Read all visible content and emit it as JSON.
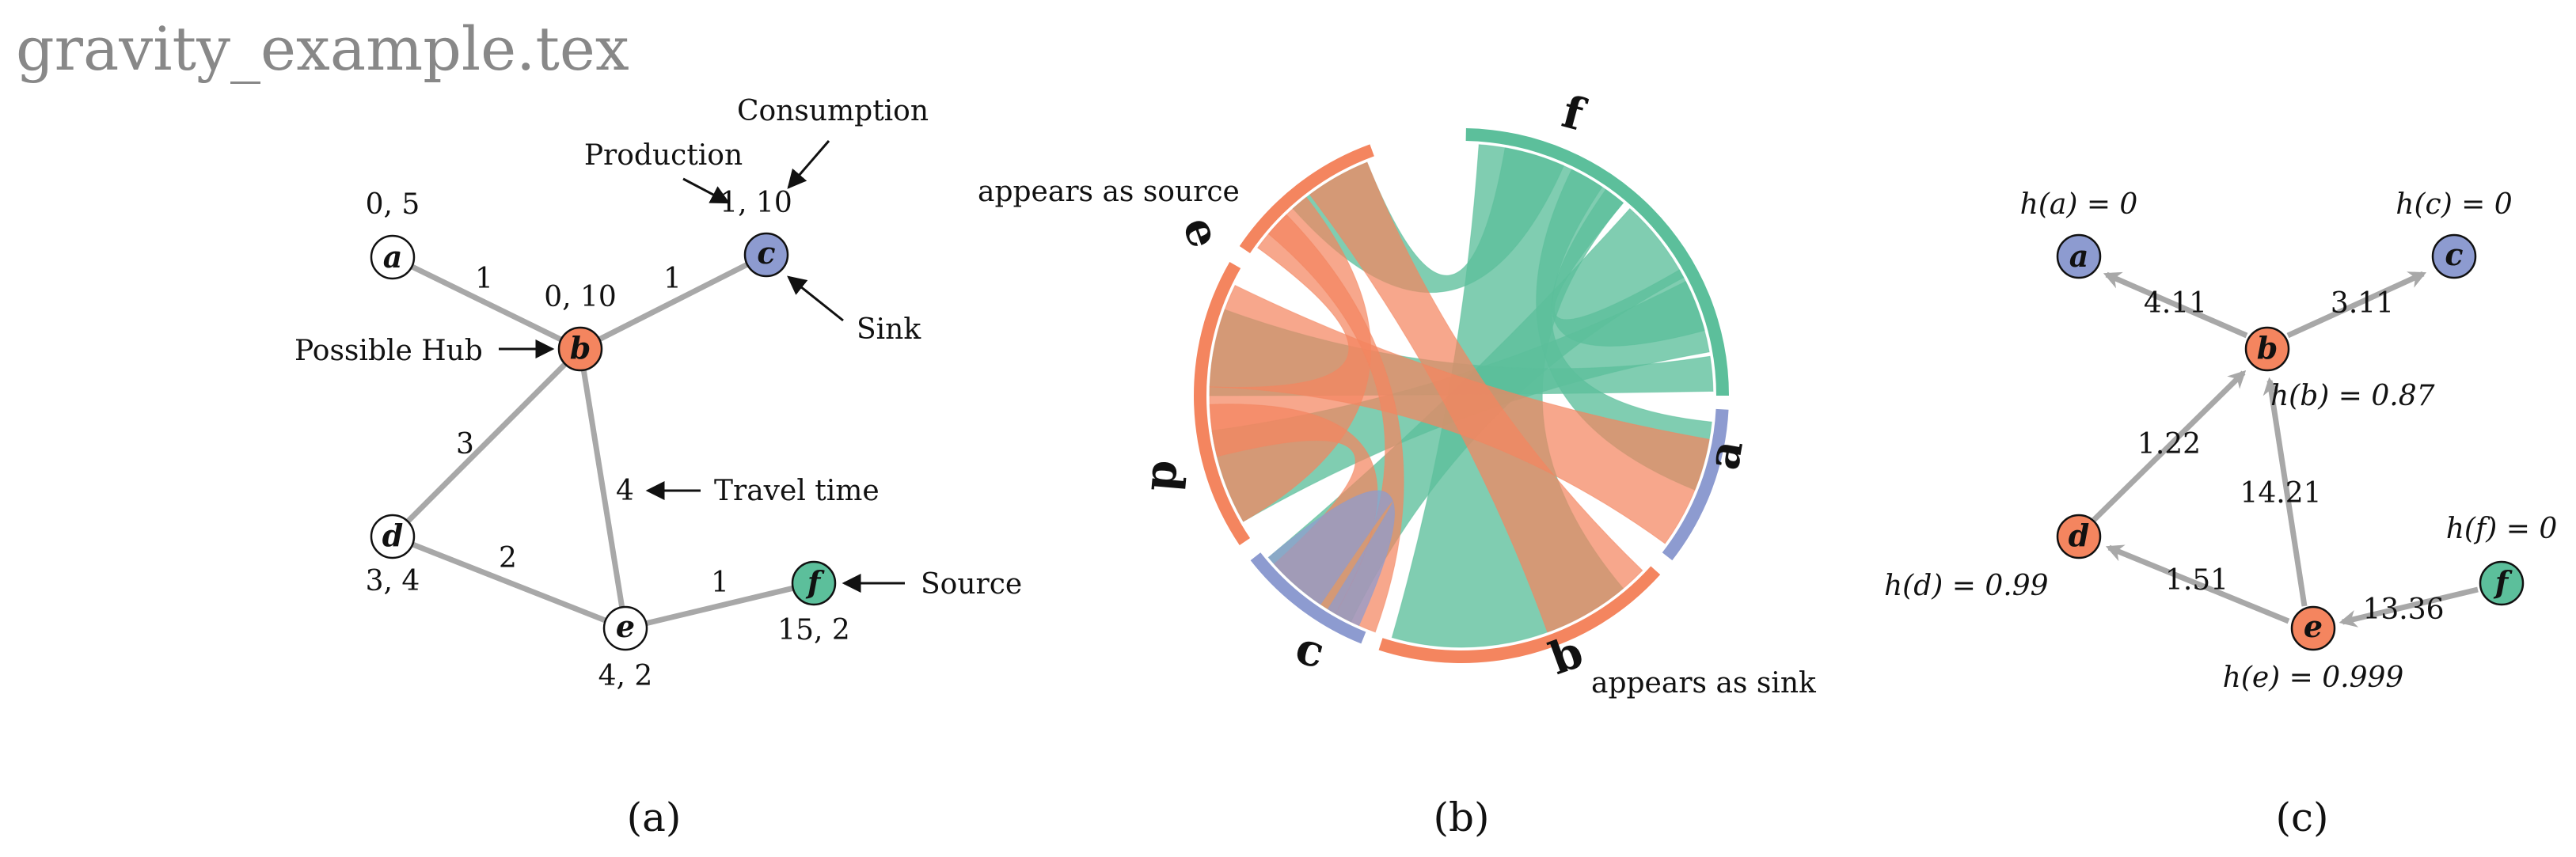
{
  "title": "gravity_example.tex",
  "colors": {
    "orange": "#f4855f",
    "blue": "#8d9bd0",
    "green": "#5cbf9b",
    "white": "#ffffff",
    "edge": "#a8a8a8"
  },
  "panel_a": {
    "caption": "(a)",
    "nodes": {
      "a": {
        "label": "a",
        "value": "0, 5",
        "color": "white"
      },
      "b": {
        "label": "b",
        "value": "0, 10",
        "color": "orange"
      },
      "c": {
        "label": "c",
        "value": "1, 10",
        "color": "blue"
      },
      "d": {
        "label": "d",
        "value": "3, 4",
        "color": "white"
      },
      "e": {
        "label": "e",
        "value": "4, 2",
        "color": "white"
      },
      "f": {
        "label": "f",
        "value": "15, 2",
        "color": "green"
      }
    },
    "edges": [
      {
        "from": "a",
        "to": "b",
        "weight": "1"
      },
      {
        "from": "b",
        "to": "c",
        "weight": "1"
      },
      {
        "from": "b",
        "to": "d",
        "weight": "3"
      },
      {
        "from": "b",
        "to": "e",
        "weight": "4"
      },
      {
        "from": "d",
        "to": "e",
        "weight": "2"
      },
      {
        "from": "e",
        "to": "f",
        "weight": "1"
      }
    ],
    "annotations": {
      "consumption": "Consumption",
      "production": "Production",
      "sink": "Sink",
      "possible_hub": "Possible Hub",
      "travel_time": "Travel time",
      "source": "Source"
    }
  },
  "panel_b": {
    "caption": "(b)",
    "appears_as_source": "appears as source",
    "appears_as_sink": "appears as sink",
    "arcs": [
      {
        "id": "f",
        "label": "f",
        "color": "green"
      },
      {
        "id": "a",
        "label": "a",
        "color": "blue"
      },
      {
        "id": "b",
        "label": "b",
        "color": "orange"
      },
      {
        "id": "c",
        "label": "c",
        "color": "blue"
      },
      {
        "id": "d",
        "label": "d",
        "color": "orange"
      },
      {
        "id": "e",
        "label": "e",
        "color": "orange"
      }
    ]
  },
  "panel_c": {
    "caption": "(c)",
    "nodes": {
      "a": {
        "label": "a",
        "h": "h(a) = 0",
        "color": "blue"
      },
      "b": {
        "label": "b",
        "h": "h(b) = 0.87",
        "color": "orange"
      },
      "c": {
        "label": "c",
        "h": "h(c) = 0",
        "color": "blue"
      },
      "d": {
        "label": "d",
        "h": "h(d) = 0.99",
        "color": "orange"
      },
      "e": {
        "label": "e",
        "h": "h(e) = 0.999",
        "color": "orange"
      },
      "f": {
        "label": "f",
        "h": "h(f) = 0",
        "color": "green"
      }
    },
    "edges": [
      {
        "from": "b",
        "to": "a",
        "weight": "4.11"
      },
      {
        "from": "b",
        "to": "c",
        "weight": "3.11"
      },
      {
        "from": "d",
        "to": "b",
        "weight": "1.22"
      },
      {
        "from": "e",
        "to": "b",
        "weight": "14.21"
      },
      {
        "from": "e",
        "to": "d",
        "weight": "1.51"
      },
      {
        "from": "f",
        "to": "e",
        "weight": "13.36"
      }
    ]
  }
}
